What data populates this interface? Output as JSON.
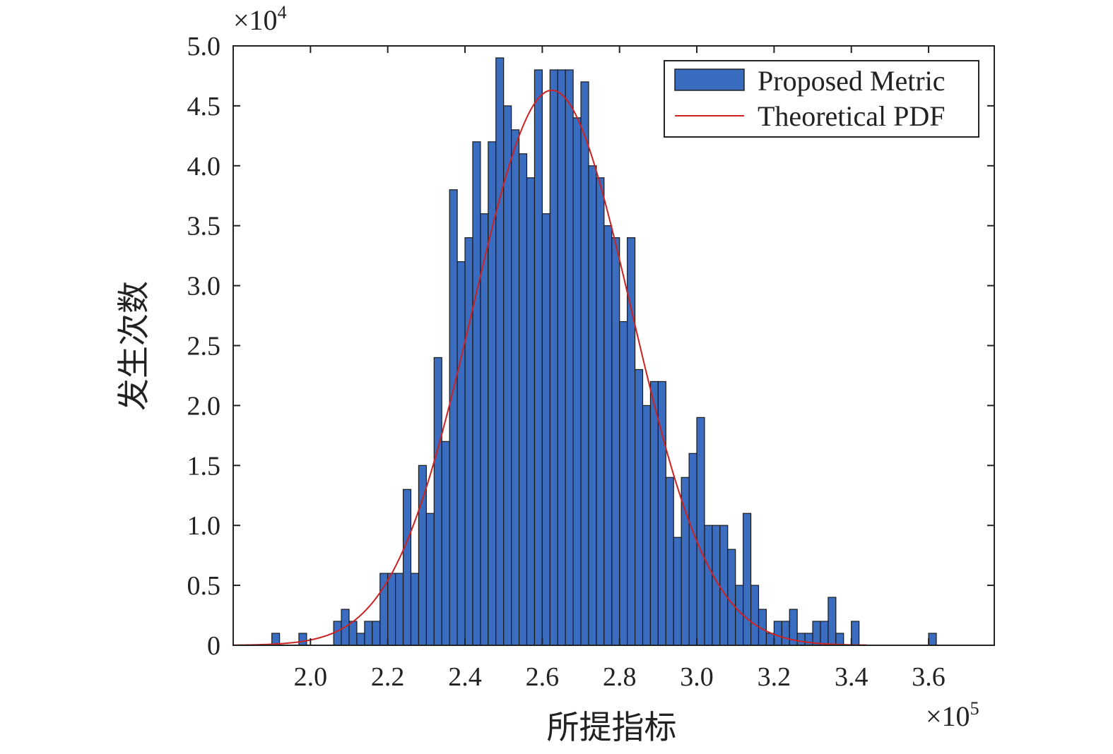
{
  "chart_data": {
    "type": "bar",
    "title": "",
    "xlabel": "所提指标",
    "ylabel": "发生次数",
    "x_multiplier": {
      "base": "×10",
      "exp": "5"
    },
    "y_multiplier": {
      "base": "×10",
      "exp": "4"
    },
    "xlim": [
      1.8,
      3.77
    ],
    "ylim": [
      0,
      5.0
    ],
    "x_ticks": [
      "2.0",
      "2.2",
      "2.4",
      "2.6",
      "2.8",
      "3.0",
      "3.2",
      "3.4",
      "3.6"
    ],
    "y_ticks": [
      "0",
      "0.5",
      "1.0",
      "1.5",
      "2.0",
      "2.5",
      "3.0",
      "3.5",
      "4.0",
      "4.5",
      "5.0"
    ],
    "legend": {
      "position": "top-right",
      "entries": [
        {
          "label": "Proposed Metric",
          "kind": "bar"
        },
        {
          "label": "Theoretical PDF",
          "kind": "line"
        }
      ]
    },
    "bin_width": 0.02,
    "series": [
      {
        "name": "Proposed Metric",
        "type": "bar",
        "color": "#3a6cc0",
        "bins": [
          [
            1.9,
            0.1
          ],
          [
            1.97,
            0.1
          ],
          [
            2.06,
            0.2
          ],
          [
            2.08,
            0.3
          ],
          [
            2.1,
            0.2
          ],
          [
            2.12,
            0.1
          ],
          [
            2.14,
            0.2
          ],
          [
            2.16,
            0.2
          ],
          [
            2.18,
            0.6
          ],
          [
            2.2,
            0.6
          ],
          [
            2.22,
            0.6
          ],
          [
            2.24,
            1.3
          ],
          [
            2.26,
            0.6
          ],
          [
            2.28,
            1.5
          ],
          [
            2.3,
            1.1
          ],
          [
            2.32,
            2.4
          ],
          [
            2.34,
            1.7
          ],
          [
            2.36,
            3.8
          ],
          [
            2.38,
            3.2
          ],
          [
            2.4,
            3.4
          ],
          [
            2.42,
            4.2
          ],
          [
            2.44,
            3.6
          ],
          [
            2.46,
            4.2
          ],
          [
            2.48,
            4.9
          ],
          [
            2.5,
            4.5
          ],
          [
            2.52,
            4.3
          ],
          [
            2.54,
            4.1
          ],
          [
            2.56,
            3.9
          ],
          [
            2.58,
            4.8
          ],
          [
            2.6,
            3.6
          ],
          [
            2.62,
            4.8
          ],
          [
            2.64,
            4.8
          ],
          [
            2.66,
            4.8
          ],
          [
            2.68,
            4.4
          ],
          [
            2.7,
            4.7
          ],
          [
            2.72,
            4.0
          ],
          [
            2.74,
            3.9
          ],
          [
            2.76,
            3.5
          ],
          [
            2.78,
            3.4
          ],
          [
            2.8,
            2.7
          ],
          [
            2.82,
            3.4
          ],
          [
            2.84,
            2.3
          ],
          [
            2.86,
            2.0
          ],
          [
            2.88,
            2.2
          ],
          [
            2.9,
            2.2
          ],
          [
            2.92,
            1.4
          ],
          [
            2.94,
            0.9
          ],
          [
            2.96,
            1.4
          ],
          [
            2.98,
            1.6
          ],
          [
            3.0,
            1.9
          ],
          [
            3.02,
            1.0
          ],
          [
            3.04,
            1.0
          ],
          [
            3.06,
            1.0
          ],
          [
            3.08,
            0.8
          ],
          [
            3.1,
            0.5
          ],
          [
            3.12,
            1.1
          ],
          [
            3.14,
            0.5
          ],
          [
            3.16,
            0.3
          ],
          [
            3.18,
            0.1
          ],
          [
            3.2,
            0.2
          ],
          [
            3.22,
            0.2
          ],
          [
            3.24,
            0.3
          ],
          [
            3.26,
            0.1
          ],
          [
            3.28,
            0.1
          ],
          [
            3.3,
            0.2
          ],
          [
            3.32,
            0.2
          ],
          [
            3.34,
            0.4
          ],
          [
            3.36,
            0.1
          ],
          [
            3.4,
            0.2
          ],
          [
            3.6,
            0.1
          ]
        ]
      },
      {
        "name": "Theoretical PDF",
        "type": "line",
        "color": "#cc2222",
        "distribution": {
          "kind": "normal",
          "mean": 2.625,
          "std": 0.205,
          "peak": 4.63
        },
        "x_range": [
          1.8,
          3.44
        ]
      }
    ]
  }
}
